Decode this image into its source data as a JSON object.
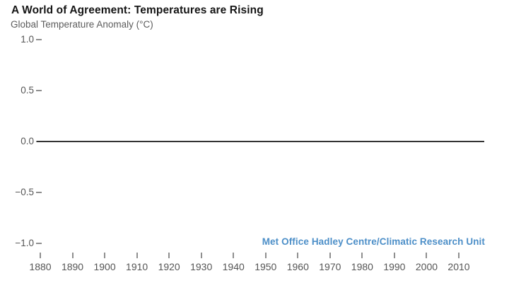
{
  "header": {
    "title": "A World of Agreement: Temperatures are Rising",
    "subtitle": "Global Temperature Anomaly (°C)"
  },
  "source": {
    "label": "Met Office Hadley Centre/Climatic Research Unit",
    "color": "#4d8fc8"
  },
  "colors": {
    "background": "#ffffff",
    "title_text": "#151515",
    "subtitle_text": "#5c5c5c",
    "axis_label_text": "#555555",
    "tick_mark": "#8f8f8f",
    "zero_baseline": "#333333",
    "source_text": "#4d8fc8"
  },
  "chart_data": {
    "type": "line",
    "title": "A World of Agreement: Temperatures are Rising",
    "ylabel": "Global Temperature Anomaly (°C)",
    "xlabel": "",
    "xlim": [
      1879,
      2018
    ],
    "ylim": [
      -1.0,
      1.0
    ],
    "x_ticks": [
      1880,
      1890,
      1900,
      1910,
      1920,
      1930,
      1940,
      1950,
      1960,
      1970,
      1980,
      1990,
      2000,
      2010
    ],
    "x_tick_labels": [
      "1880",
      "1890",
      "1900",
      "1910",
      "1920",
      "1930",
      "1940",
      "1950",
      "1960",
      "1970",
      "1980",
      "1990",
      "2000",
      "2010"
    ],
    "y_ticks": [
      1.0,
      0.5,
      0.0,
      -0.5,
      -1.0
    ],
    "y_tick_labels": [
      "1.0",
      "0.5",
      "0.0",
      "−0.5",
      "−1.0"
    ],
    "baseline_value": 0.0,
    "series": [],
    "grid": false,
    "legend": "none",
    "annotations": [
      {
        "text": "Met Office Hadley Centre/Climatic Research Unit",
        "position": "bottom-right",
        "color": "#4d8fc8"
      }
    ]
  }
}
